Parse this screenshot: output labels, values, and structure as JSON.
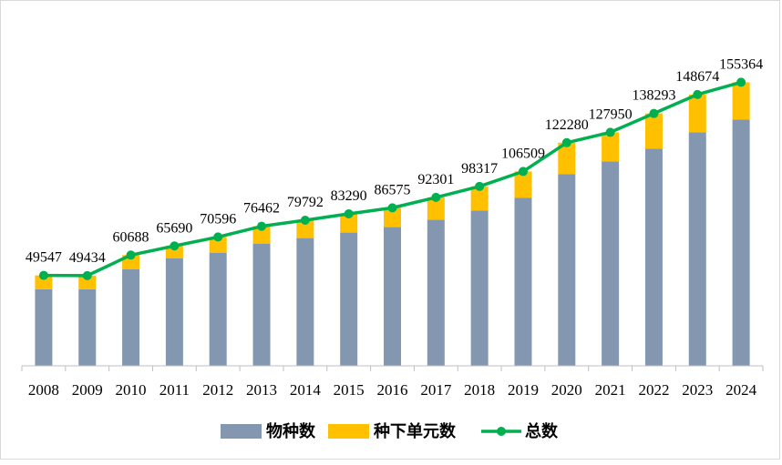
{
  "chart_data": {
    "type": "bar",
    "stacked": true,
    "categories": [
      "2008",
      "2009",
      "2010",
      "2011",
      "2012",
      "2013",
      "2014",
      "2015",
      "2016",
      "2017",
      "2018",
      "2019",
      "2020",
      "2021",
      "2022",
      "2023",
      "2024"
    ],
    "series": [
      {
        "name": "物种数",
        "type": "bar",
        "color": "#8497B0",
        "values": [
          42000,
          42000,
          53000,
          59000,
          62000,
          67000,
          70000,
          73000,
          76000,
          80000,
          85000,
          92000,
          105000,
          112000,
          119000,
          128000,
          135000
        ]
      },
      {
        "name": "种下单元数",
        "type": "bar",
        "color": "#FFC000",
        "values": [
          7547,
          7434,
          7688,
          6690,
          8596,
          9462,
          9792,
          10290,
          10575,
          12301,
          13317,
          14509,
          17280,
          15950,
          19293,
          20674,
          20364
        ]
      },
      {
        "name": "总数",
        "type": "line",
        "color": "#00B050",
        "values": [
          49547,
          49434,
          60688,
          65690,
          70596,
          76462,
          79792,
          83290,
          86575,
          92301,
          98317,
          106509,
          122280,
          127950,
          138293,
          148674,
          155364
        ]
      }
    ],
    "data_labels": [
      "49547",
      "49434",
      "60688",
      "65690",
      "70596",
      "76462",
      "79792",
      "83290",
      "86575",
      "92301",
      "98317",
      "106509",
      "122280",
      "127950",
      "138293",
      "148674",
      "155364"
    ],
    "ylim": [
      0,
      185000
    ],
    "grid": false,
    "legend_position": "bottom"
  }
}
